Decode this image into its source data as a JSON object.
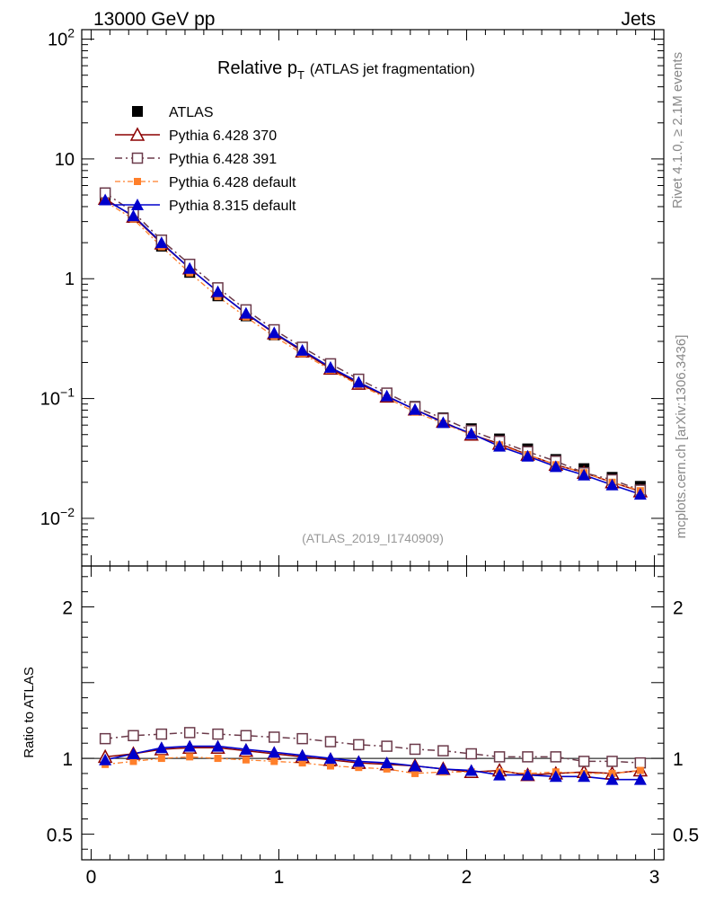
{
  "header": {
    "left": "13000 GeV pp",
    "right": "Jets"
  },
  "title": {
    "main": "Relative p",
    "sub": "T",
    "suffix": "(ATLAS jet fragmentation)"
  },
  "side_labels": {
    "rivet": "Rivet 4.1.0, ≥ 2.1M events",
    "mcplots": "mcplots.cern.ch [arXiv:1306.3436]"
  },
  "analysis_id": "(ATLAS_2019_I1740909)",
  "ratio_ylabel": "Ratio to ATLAS",
  "colors": {
    "atlas": "#000000",
    "p370": "#8b0000",
    "p391": "#6b3a4a",
    "p6def": "#ff7f2a",
    "p8def": "#0000cc"
  },
  "chart_data": [
    {
      "type": "scatter",
      "name": "main",
      "title": "Relative pT (ATLAS jet fragmentation)",
      "xlabel": "",
      "ylabel": "",
      "yscale": "log",
      "xlim": [
        -0.05,
        3.05
      ],
      "ylim": [
        0.004,
        120
      ],
      "y_ticks": [
        {
          "value": 0.01,
          "base": "10",
          "exp": "−2"
        },
        {
          "value": 0.1,
          "base": "10",
          "exp": "−1"
        },
        {
          "value": 1,
          "base": "1",
          "exp": ""
        },
        {
          "value": 10,
          "base": "10",
          "exp": ""
        },
        {
          "value": 100,
          "base": "10",
          "exp": "2"
        }
      ],
      "x": [
        0.075,
        0.225,
        0.375,
        0.525,
        0.675,
        0.825,
        0.975,
        1.125,
        1.275,
        1.425,
        1.575,
        1.725,
        1.875,
        2.025,
        2.175,
        2.325,
        2.475,
        2.625,
        2.775,
        2.925
      ],
      "series": [
        {
          "name": "ATLAS",
          "key": "atlas",
          "values": [
            4.6,
            3.25,
            1.87,
            1.13,
            0.72,
            0.49,
            0.34,
            0.245,
            0.183,
            0.14,
            0.109,
            0.086,
            0.069,
            0.056,
            0.046,
            0.038,
            0.031,
            0.026,
            0.022,
            0.0185
          ]
        },
        {
          "name": "Pythia 6.428 370",
          "key": "p370",
          "values": [
            4.65,
            3.3,
            1.97,
            1.22,
            0.78,
            0.51,
            0.35,
            0.247,
            0.178,
            0.133,
            0.104,
            0.081,
            0.064,
            0.05,
            0.042,
            0.034,
            0.028,
            0.024,
            0.02,
            0.0168
          ]
        },
        {
          "name": "Pythia 6.428 391",
          "key": "p391",
          "values": [
            5.2,
            3.6,
            2.1,
            1.32,
            0.84,
            0.55,
            0.375,
            0.268,
            0.195,
            0.145,
            0.111,
            0.085,
            0.068,
            0.054,
            0.044,
            0.036,
            0.03,
            0.024,
            0.021,
            0.0172
          ]
        },
        {
          "name": "Pythia 6.428 default",
          "key": "p6def",
          "values": [
            4.4,
            3.15,
            1.85,
            1.12,
            0.71,
            0.48,
            0.33,
            0.237,
            0.173,
            0.13,
            0.101,
            0.077,
            0.062,
            0.05,
            0.041,
            0.034,
            0.028,
            0.024,
            0.02,
            0.017
          ]
        },
        {
          "name": "Pythia 8.315 default",
          "key": "p8def",
          "values": [
            4.55,
            3.35,
            2.0,
            1.22,
            0.78,
            0.515,
            0.354,
            0.253,
            0.182,
            0.137,
            0.105,
            0.081,
            0.063,
            0.051,
            0.04,
            0.033,
            0.027,
            0.023,
            0.019,
            0.0159
          ]
        }
      ],
      "legend": {
        "placement": "top-left",
        "entries": [
          {
            "key": "atlas",
            "label": "ATLAS"
          },
          {
            "key": "p370",
            "label": "Pythia 6.428 370"
          },
          {
            "key": "p391",
            "label": "Pythia 6.428 391"
          },
          {
            "key": "p6def",
            "label": "Pythia 6.428 default"
          },
          {
            "key": "p8def",
            "label": "Pythia 8.315 default"
          }
        ]
      }
    },
    {
      "type": "line",
      "name": "ratio",
      "ylabel": "Ratio to ATLAS",
      "xlim": [
        -0.05,
        3.05
      ],
      "ylim": [
        0.33,
        2.27
      ],
      "y_ticks": [
        0.5,
        1,
        2
      ],
      "y_tick_labels": [
        "0.5",
        "1",
        "2"
      ],
      "x_ticks": [
        0,
        1,
        2,
        3
      ],
      "x_tick_labels": [
        "0",
        "1",
        "2",
        "3"
      ],
      "x": [
        0.075,
        0.225,
        0.375,
        0.525,
        0.675,
        0.825,
        0.975,
        1.125,
        1.275,
        1.425,
        1.575,
        1.725,
        1.875,
        2.025,
        2.175,
        2.325,
        2.475,
        2.625,
        2.775,
        2.925
      ],
      "series": [
        {
          "name": "Pythia 6.428 370",
          "key": "p370",
          "values": [
            1.01,
            1.03,
            1.06,
            1.07,
            1.07,
            1.05,
            1.03,
            1.01,
            0.99,
            0.97,
            0.96,
            0.95,
            0.93,
            0.91,
            0.92,
            0.89,
            0.9,
            0.91,
            0.9,
            0.92
          ]
        },
        {
          "name": "Pythia 6.428 391",
          "key": "p391",
          "values": [
            1.13,
            1.15,
            1.16,
            1.17,
            1.16,
            1.15,
            1.14,
            1.13,
            1.11,
            1.09,
            1.08,
            1.06,
            1.05,
            1.03,
            1.01,
            1.01,
            1.01,
            0.98,
            0.98,
            0.97
          ]
        },
        {
          "name": "Pythia 6.428 default",
          "key": "p6def",
          "values": [
            0.96,
            0.98,
            1.0,
            1.01,
            1.0,
            0.99,
            0.98,
            0.97,
            0.95,
            0.94,
            0.93,
            0.9,
            0.91,
            0.91,
            0.91,
            0.9,
            0.91,
            0.9,
            0.9,
            0.92
          ]
        },
        {
          "name": "Pythia 8.315 default",
          "key": "p8def",
          "values": [
            0.99,
            1.03,
            1.07,
            1.08,
            1.08,
            1.06,
            1.04,
            1.02,
            1.0,
            0.98,
            0.97,
            0.95,
            0.93,
            0.92,
            0.89,
            0.89,
            0.88,
            0.88,
            0.86,
            0.86
          ]
        }
      ]
    }
  ]
}
